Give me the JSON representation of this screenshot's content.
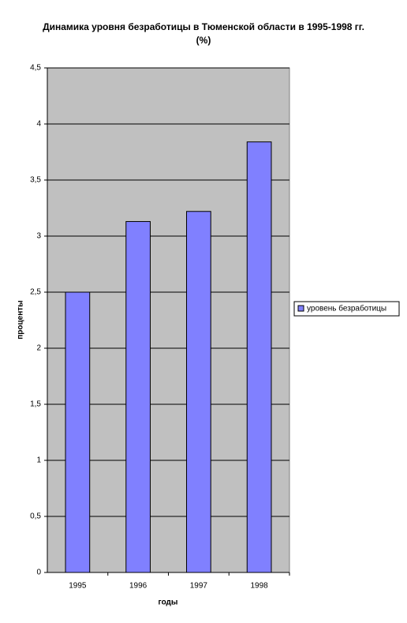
{
  "chart_data": {
    "type": "bar",
    "title": "Динамика уровня безработицы в Тюменской области в 1995-1998 гг. (%)",
    "x_label": "годы",
    "y_label": "проценты",
    "categories": [
      "1995",
      "1996",
      "1997",
      "1998"
    ],
    "series": [
      {
        "name": "уровень безработицы",
        "color": "#8080ff",
        "values": [
          2.5,
          3.13,
          3.22,
          3.84
        ]
      }
    ],
    "ylim": [
      0,
      4.5
    ],
    "yticks": [
      0,
      {
        "value": 0.5,
        "label": "0,5"
      },
      1,
      {
        "value": 1.5,
        "label": "1,5"
      },
      2,
      {
        "value": 2.5,
        "label": "2,5"
      },
      3,
      {
        "value": 3.5,
        "label": "3,5"
      },
      4,
      {
        "value": 4.5,
        "label": "4,5"
      }
    ],
    "grid": true,
    "plot_background": "#c0c0c0",
    "legend": "right"
  }
}
